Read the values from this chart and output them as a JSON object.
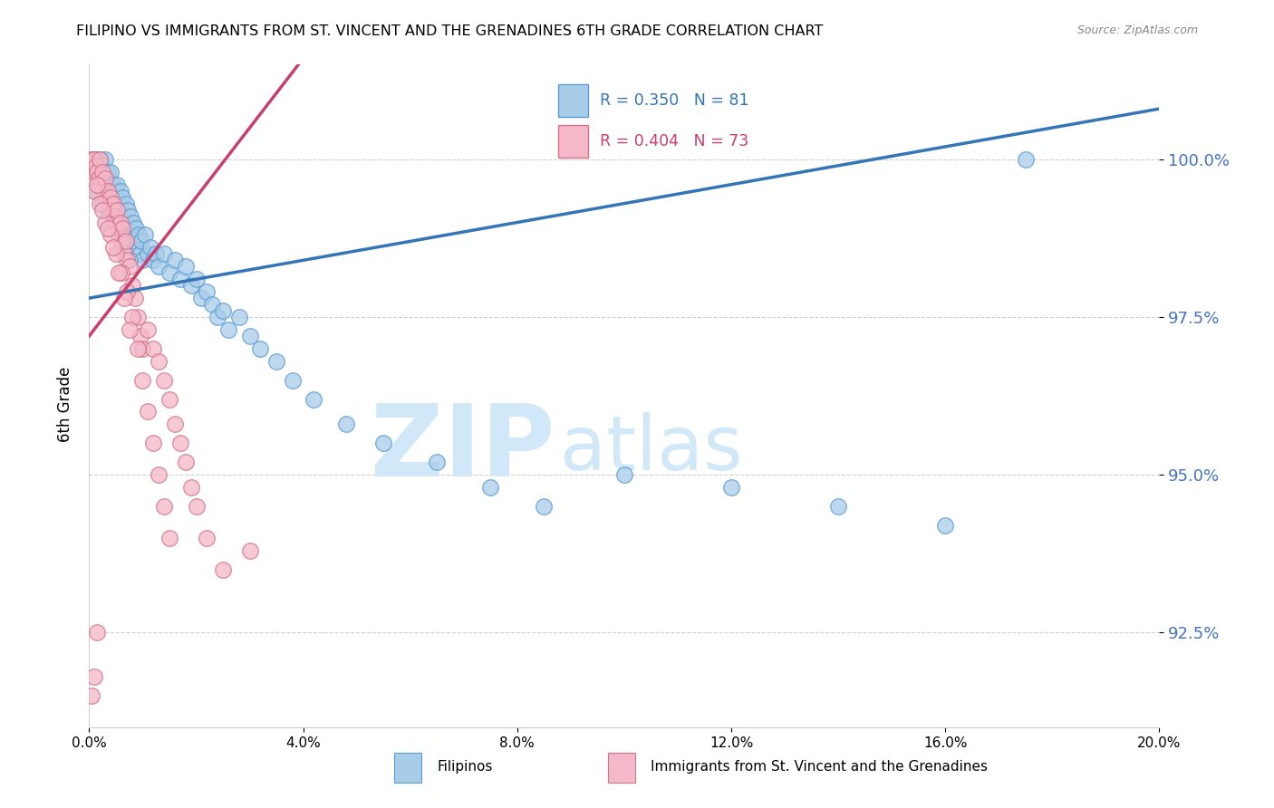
{
  "title": "FILIPINO VS IMMIGRANTS FROM ST. VINCENT AND THE GRENADINES 6TH GRADE CORRELATION CHART",
  "source": "Source: ZipAtlas.com",
  "ylabel": "6th Grade",
  "yaxis_ticks": [
    92.5,
    95.0,
    97.5,
    100.0
  ],
  "yaxis_labels": [
    "92.5%",
    "95.0%",
    "97.5%",
    "100.0%"
  ],
  "xlim": [
    0.0,
    20.0
  ],
  "ylim": [
    91.0,
    101.5
  ],
  "xticks": [
    0.0,
    4.0,
    8.0,
    12.0,
    16.0,
    20.0
  ],
  "xticklabels": [
    "0.0%",
    "4.0%",
    "8.0%",
    "12.0%",
    "16.0%",
    "20.0%"
  ],
  "blue_label": "Filipinos",
  "pink_label": "Immigrants from St. Vincent and the Grenadines",
  "blue_R": 0.35,
  "blue_N": 81,
  "pink_R": 0.404,
  "pink_N": 73,
  "blue_color": "#a8cde8",
  "pink_color": "#f4b8c8",
  "blue_edge_color": "#5b9bd5",
  "pink_edge_color": "#d4728a",
  "blue_line_color": "#3375b5",
  "pink_line_color": "#c94070",
  "watermark_zip": "ZIP",
  "watermark_atlas": "atlas",
  "watermark_color": "#d0e8f8",
  "legend_R_color": "#3375b5",
  "legend_R2_color": "#c94070",
  "blue_x": [
    0.05,
    0.08,
    0.1,
    0.12,
    0.15,
    0.18,
    0.2,
    0.22,
    0.25,
    0.28,
    0.3,
    0.32,
    0.35,
    0.38,
    0.4,
    0.42,
    0.45,
    0.48,
    0.5,
    0.52,
    0.55,
    0.58,
    0.6,
    0.62,
    0.65,
    0.68,
    0.7,
    0.72,
    0.75,
    0.78,
    0.8,
    0.82,
    0.85,
    0.88,
    0.9,
    0.92,
    0.95,
    0.98,
    1.0,
    1.05,
    1.1,
    1.15,
    1.2,
    1.25,
    1.3,
    1.4,
    1.5,
    1.6,
    1.7,
    1.8,
    1.9,
    2.0,
    2.1,
    2.2,
    2.3,
    2.4,
    2.5,
    2.6,
    2.8,
    3.0,
    3.2,
    3.5,
    3.8,
    4.2,
    4.8,
    5.5,
    6.5,
    7.5,
    8.5,
    10.0,
    12.0,
    14.0,
    16.0,
    17.5,
    0.15,
    0.25,
    0.35,
    0.45,
    0.55,
    0.65,
    0.75
  ],
  "blue_y": [
    100.0,
    99.9,
    100.0,
    99.8,
    100.0,
    99.9,
    99.8,
    100.0,
    99.9,
    99.8,
    100.0,
    99.7,
    99.8,
    99.6,
    99.8,
    99.5,
    99.6,
    99.4,
    99.5,
    99.6,
    99.3,
    99.5,
    99.2,
    99.4,
    99.1,
    99.3,
    99.0,
    99.2,
    98.9,
    99.1,
    98.8,
    99.0,
    98.7,
    98.9,
    98.6,
    98.8,
    98.5,
    98.7,
    98.4,
    98.8,
    98.5,
    98.6,
    98.4,
    98.5,
    98.3,
    98.5,
    98.2,
    98.4,
    98.1,
    98.3,
    98.0,
    98.1,
    97.8,
    97.9,
    97.7,
    97.5,
    97.6,
    97.3,
    97.5,
    97.2,
    97.0,
    96.8,
    96.5,
    96.2,
    95.8,
    95.5,
    95.2,
    94.8,
    94.5,
    95.0,
    94.8,
    94.5,
    94.2,
    100.0,
    99.5,
    99.3,
    99.2,
    99.0,
    98.8,
    98.6,
    98.4
  ],
  "pink_x": [
    0.02,
    0.04,
    0.06,
    0.08,
    0.1,
    0.12,
    0.15,
    0.18,
    0.2,
    0.22,
    0.25,
    0.28,
    0.3,
    0.32,
    0.35,
    0.38,
    0.4,
    0.42,
    0.45,
    0.48,
    0.5,
    0.52,
    0.55,
    0.58,
    0.6,
    0.62,
    0.65,
    0.68,
    0.7,
    0.75,
    0.8,
    0.85,
    0.9,
    0.95,
    1.0,
    1.1,
    1.2,
    1.3,
    1.4,
    1.5,
    1.6,
    1.7,
    1.8,
    1.9,
    2.0,
    2.2,
    2.5,
    3.0,
    0.1,
    0.2,
    0.3,
    0.4,
    0.5,
    0.6,
    0.7,
    0.8,
    0.9,
    1.0,
    1.1,
    1.2,
    1.3,
    1.4,
    1.5,
    0.15,
    0.25,
    0.35,
    0.45,
    0.55,
    0.65,
    0.75,
    0.05,
    0.1,
    0.15
  ],
  "pink_y": [
    100.0,
    99.9,
    100.0,
    99.8,
    100.0,
    99.9,
    99.8,
    99.7,
    100.0,
    99.6,
    99.8,
    99.5,
    99.7,
    99.4,
    99.5,
    99.3,
    99.4,
    99.2,
    99.3,
    99.1,
    99.0,
    99.2,
    98.8,
    99.0,
    98.7,
    98.9,
    98.5,
    98.7,
    98.4,
    98.3,
    98.0,
    97.8,
    97.5,
    97.2,
    97.0,
    97.3,
    97.0,
    96.8,
    96.5,
    96.2,
    95.8,
    95.5,
    95.2,
    94.8,
    94.5,
    94.0,
    93.5,
    93.8,
    99.5,
    99.3,
    99.0,
    98.8,
    98.5,
    98.2,
    97.9,
    97.5,
    97.0,
    96.5,
    96.0,
    95.5,
    95.0,
    94.5,
    94.0,
    99.6,
    99.2,
    98.9,
    98.6,
    98.2,
    97.8,
    97.3,
    91.5,
    91.8,
    92.5
  ]
}
